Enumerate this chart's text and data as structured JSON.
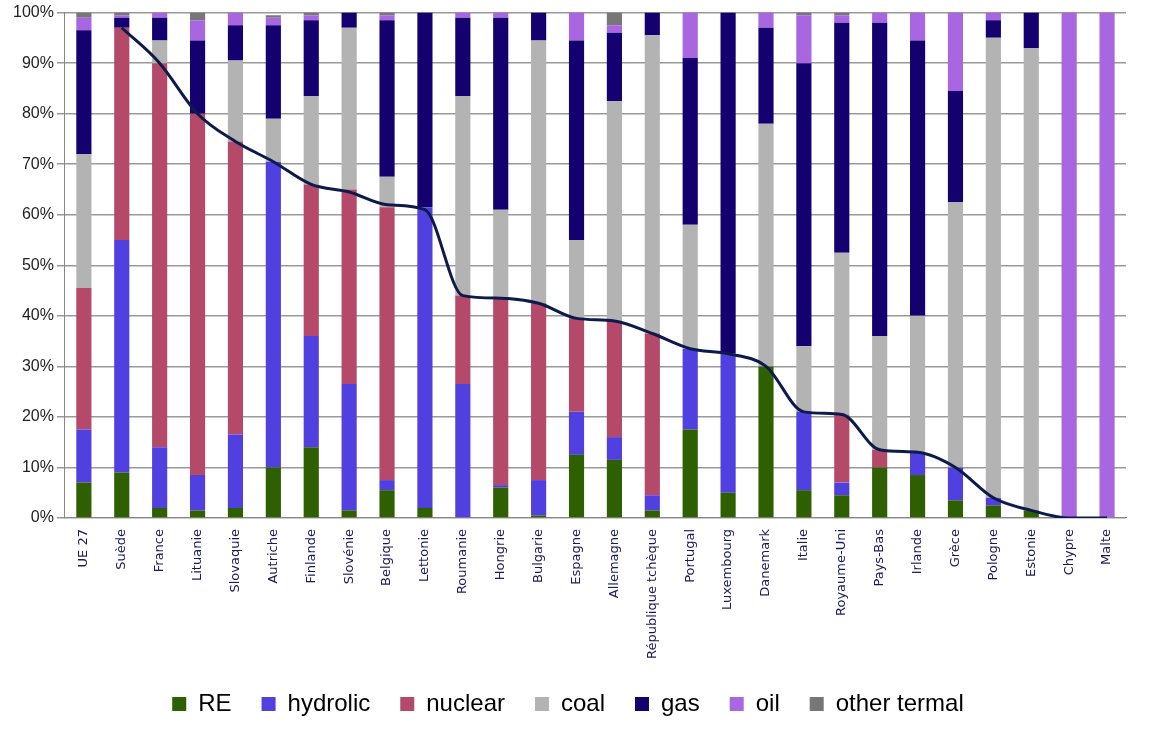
{
  "chart_data": {
    "type": "bar",
    "stacked": true,
    "categories": [
      "UE 27",
      "Suède",
      "France",
      "Lituanie",
      "Slovaquie",
      "Autriche",
      "Finlande",
      "Slovénie",
      "Belgique",
      "Lettonie",
      "Roumanie",
      "Hongrie",
      "Bulgarie",
      "Espagne",
      "Allemagne",
      "République tchèque",
      "Portugal",
      "Luxembourg",
      "Danemark",
      "Italie",
      "Royaume-Uni",
      "Pays-Bas",
      "Irlande",
      "Grèce",
      "Pologne",
      "Estonie",
      "Chypre",
      "Malte"
    ],
    "series": [
      {
        "name": "RE",
        "color": "#2e5f00",
        "values": [
          7,
          9,
          2,
          1.5,
          2,
          10,
          14,
          1.5,
          5.5,
          2,
          0,
          6,
          0.5,
          12.5,
          11.5,
          1.5,
          17.5,
          5,
          30,
          5.5,
          4.5,
          10,
          8.5,
          3.5,
          2.5,
          1.5,
          0,
          0
        ]
      },
      {
        "name": "hydrolic",
        "color": "#5040e0",
        "values": [
          10.5,
          46,
          12,
          7,
          14.5,
          60.5,
          22,
          25,
          2,
          59.5,
          26.5,
          0.5,
          7,
          8.5,
          4.5,
          3,
          16,
          27.5,
          0,
          15.5,
          2.5,
          0,
          4.5,
          6.5,
          1.5,
          0,
          0,
          0
        ]
      },
      {
        "name": "nuclear",
        "color": "#b5496a",
        "values": [
          28,
          42,
          76,
          71.5,
          58,
          0,
          30,
          38.5,
          54,
          0,
          17.5,
          37,
          35,
          18.5,
          23,
          32,
          0,
          0,
          0,
          0,
          13.5,
          3.5,
          0,
          0,
          0,
          0,
          0,
          0
        ]
      },
      {
        "name": "coal",
        "color": "#b3b3b3",
        "values": [
          26.5,
          0,
          4.5,
          0,
          16,
          8.5,
          17.5,
          32,
          6,
          0,
          39.5,
          17.5,
          52,
          15.5,
          43.5,
          59,
          24.5,
          0,
          48,
          13,
          32,
          22.5,
          27,
          52.5,
          91,
          91.5,
          0,
          0
        ]
      },
      {
        "name": "gas",
        "color": "#14006e",
        "values": [
          24.5,
          2,
          4.5,
          14.5,
          7,
          18.5,
          15,
          3,
          31,
          38.5,
          15.5,
          38,
          5.5,
          39.5,
          13.5,
          4.5,
          33,
          67.5,
          19,
          56,
          45.5,
          62,
          54.5,
          22,
          3.5,
          7,
          0,
          0
        ]
      },
      {
        "name": "oil",
        "color": "#a866e0",
        "values": [
          2.5,
          0.5,
          1,
          4,
          2.5,
          1.5,
          1,
          0,
          1,
          0,
          1,
          1,
          0,
          5.5,
          1.5,
          0,
          9,
          0,
          3,
          9.5,
          1.5,
          2,
          5.5,
          15.5,
          1.5,
          0,
          100,
          100
        ]
      },
      {
        "name": "other termal",
        "color": "#777777",
        "values": [
          1,
          0.5,
          0,
          1.5,
          0,
          0.5,
          0.5,
          0,
          0.5,
          0,
          0,
          0,
          0,
          0,
          2.5,
          0,
          0,
          0,
          0,
          0.5,
          0.5,
          0,
          0,
          0,
          0,
          0,
          0,
          0
        ]
      },
      {
        "type": "line",
        "color": "#0d1b4a",
        "values": [
          null,
          97,
          90,
          80,
          74.5,
          70.5,
          66,
          64.5,
          62,
          61,
          44,
          43.5,
          42.5,
          39.5,
          39,
          36.5,
          33.5,
          32.5,
          30,
          21,
          20.5,
          13.5,
          13,
          10,
          4,
          1.5,
          0,
          0
        ]
      }
    ],
    "ylim": [
      0,
      100
    ],
    "yticks": [
      {
        "value": 0,
        "label": "0%"
      },
      {
        "value": 10,
        "label": "10%"
      },
      {
        "value": 20,
        "label": "20%"
      },
      {
        "value": 30,
        "label": "30%"
      },
      {
        "value": 40,
        "label": "40%"
      },
      {
        "value": 50,
        "label": "50%"
      },
      {
        "value": 60,
        "label": "60%"
      },
      {
        "value": 70,
        "label": "70%"
      },
      {
        "value": 80,
        "label": "80%"
      },
      {
        "value": 90,
        "label": "90%"
      },
      {
        "value": 100,
        "label": "100%"
      }
    ],
    "grid": "y",
    "legend": "bottom",
    "marker": "none"
  }
}
